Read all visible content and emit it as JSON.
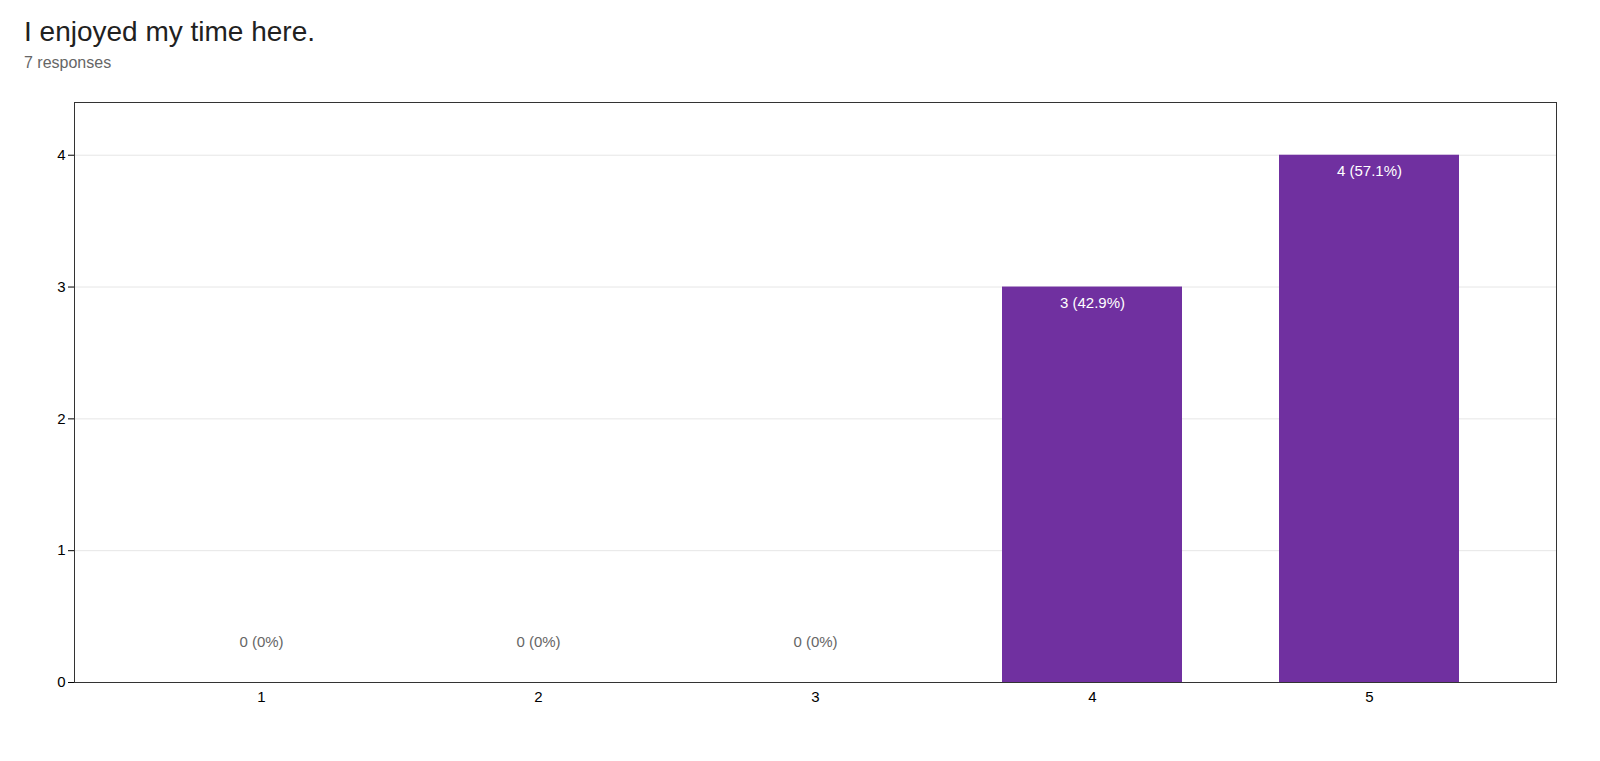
{
  "chart_data": {
    "type": "bar",
    "title": "I enjoyed my time here.",
    "subtitle": "7 responses",
    "categories": [
      1,
      2,
      3,
      4,
      5
    ],
    "values": [
      0,
      0,
      0,
      3,
      4
    ],
    "value_labels": [
      "0 (0%)",
      "0 (0%)",
      "0 (0%)",
      "3 (42.9%)",
      "4 (57.1%)"
    ],
    "color": "#7030A0",
    "ylim": [
      0,
      4.4
    ],
    "yticks": [
      0,
      1,
      2,
      3,
      4
    ],
    "grid": true,
    "data_labels": true
  }
}
